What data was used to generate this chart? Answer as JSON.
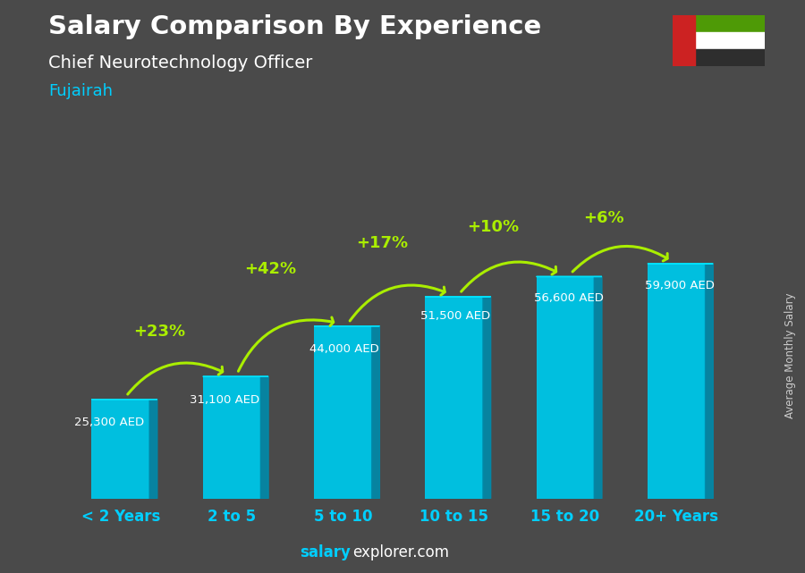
{
  "title": "Salary Comparison By Experience",
  "subtitle": "Chief Neurotechnology Officer",
  "city": "Fujairah",
  "ylabel": "Average Monthly Salary",
  "categories": [
    "< 2 Years",
    "2 to 5",
    "5 to 10",
    "10 to 15",
    "15 to 20",
    "20+ Years"
  ],
  "values": [
    25300,
    31100,
    44000,
    51500,
    56600,
    59900
  ],
  "value_labels": [
    "25,300 AED",
    "31,100 AED",
    "44,000 AED",
    "51,500 AED",
    "56,600 AED",
    "59,900 AED"
  ],
  "pct_changes": [
    "+23%",
    "+42%",
    "+17%",
    "+10%",
    "+6%"
  ],
  "bar_color_face": "#00bfdf",
  "bar_color_side": "#008aaa",
  "bar_color_top": "#00e5ff",
  "background_color": "#4a4a4a",
  "title_color": "#ffffff",
  "subtitle_color": "#ffffff",
  "city_color": "#00cfff",
  "value_label_color": "#ffffff",
  "pct_color": "#aaee00",
  "xtick_color": "#00cfff",
  "footer_salary_color": "#00cfff",
  "footer_explorer_color": "#ffffff",
  "ylabel_color": "#cccccc",
  "ylim": [
    0,
    76000
  ],
  "flag_green": "#4e9a06",
  "flag_white": "#ffffff",
  "flag_black": "#2e2e2e",
  "flag_red": "#cc2222"
}
